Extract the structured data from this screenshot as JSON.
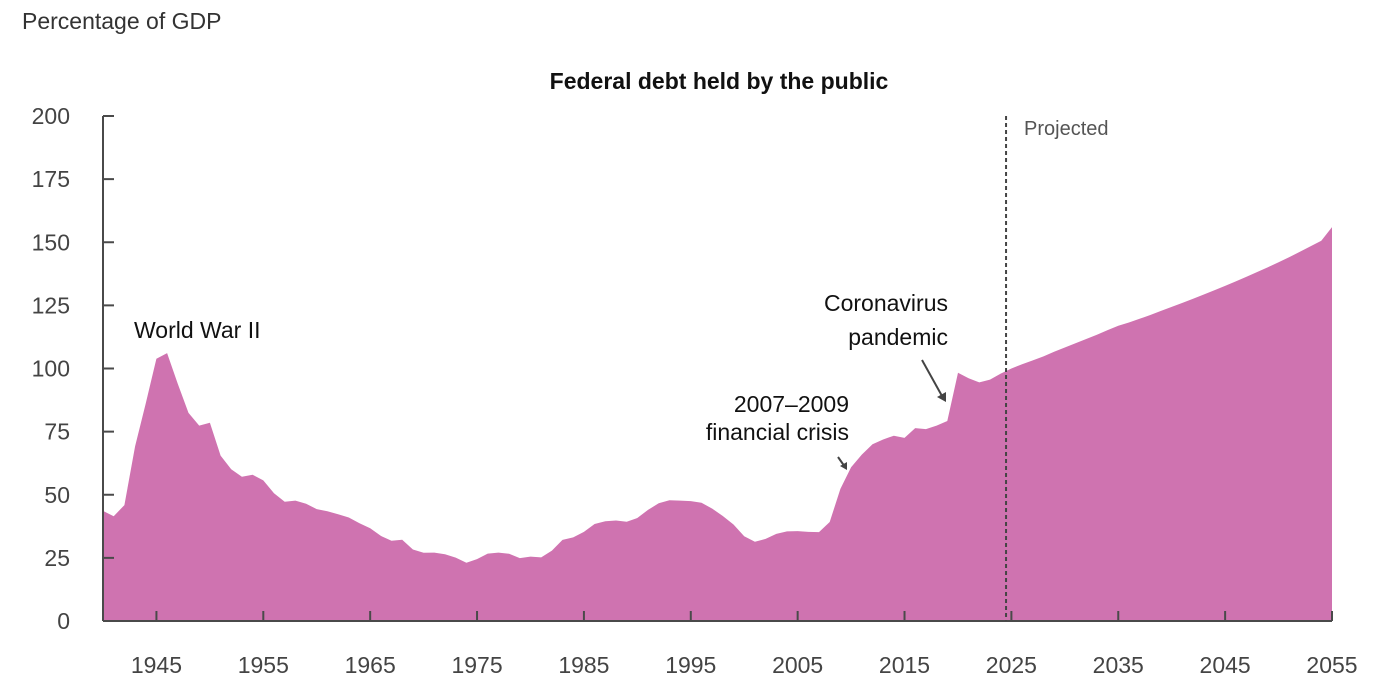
{
  "chart_data": {
    "type": "area",
    "title": "Federal debt held by the public",
    "ylabel": "Percentage of GDP",
    "xlabel": "",
    "xlim": [
      1940,
      2055
    ],
    "ylim": [
      0,
      200
    ],
    "yticks": [
      0,
      25,
      50,
      75,
      100,
      125,
      150,
      175,
      200
    ],
    "xticks": [
      1945,
      1955,
      1965,
      1975,
      1985,
      1995,
      2005,
      2015,
      2025,
      2035,
      2045,
      2055
    ],
    "grid": false,
    "color": "#cf73b0",
    "projection_start": 2024.5,
    "projection_label": "Projected",
    "annotations": [
      {
        "id": "ww2",
        "lines": [
          "World War II"
        ],
        "year": 1946
      },
      {
        "id": "gfc",
        "lines": [
          "2007–2009",
          "financial crisis"
        ],
        "year": 2009
      },
      {
        "id": "covid",
        "lines": [
          "Coronavirus",
          "pandemic"
        ],
        "year": 2019
      }
    ],
    "x": [
      1940,
      1941,
      1942,
      1943,
      1944,
      1945,
      1946,
      1947,
      1948,
      1949,
      1950,
      1951,
      1952,
      1953,
      1954,
      1955,
      1956,
      1957,
      1958,
      1959,
      1960,
      1961,
      1962,
      1963,
      1964,
      1965,
      1966,
      1967,
      1968,
      1969,
      1970,
      1971,
      1972,
      1973,
      1974,
      1975,
      1976,
      1977,
      1978,
      1979,
      1980,
      1981,
      1982,
      1983,
      1984,
      1985,
      1986,
      1987,
      1988,
      1989,
      1990,
      1991,
      1992,
      1993,
      1994,
      1995,
      1996,
      1997,
      1998,
      1999,
      2000,
      2001,
      2002,
      2003,
      2004,
      2005,
      2006,
      2007,
      2008,
      2009,
      2010,
      2011,
      2012,
      2013,
      2014,
      2015,
      2016,
      2017,
      2018,
      2019,
      2020,
      2021,
      2022,
      2023,
      2024,
      2025,
      2026,
      2027,
      2028,
      2029,
      2030,
      2031,
      2032,
      2033,
      2034,
      2035,
      2036,
      2037,
      2038,
      2039,
      2040,
      2041,
      2042,
      2043,
      2044,
      2045,
      2046,
      2047,
      2048,
      2049,
      2050,
      2051,
      2052,
      2053,
      2054,
      2055
    ],
    "values": [
      43.6,
      41.5,
      45.9,
      69.2,
      86.1,
      103.9,
      106.1,
      93.9,
      82.4,
      77.4,
      78.5,
      65.5,
      60.1,
      57.1,
      57.9,
      55.7,
      50.6,
      47.2,
      47.7,
      46.4,
      44.3,
      43.5,
      42.3,
      41.0,
      38.7,
      36.7,
      33.7,
      31.8,
      32.2,
      28.3,
      27.0,
      27.1,
      26.4,
      25.1,
      23.1,
      24.5,
      26.7,
      27.1,
      26.6,
      24.9,
      25.5,
      25.2,
      27.9,
      32.1,
      33.1,
      35.3,
      38.4,
      39.5,
      39.8,
      39.3,
      40.8,
      44.0,
      46.6,
      47.8,
      47.7,
      47.5,
      46.8,
      44.5,
      41.6,
      38.2,
      33.6,
      31.4,
      32.5,
      34.5,
      35.5,
      35.6,
      35.3,
      35.2,
      39.2,
      52.3,
      60.9,
      65.9,
      70.0,
      71.9,
      73.4,
      72.5,
      76.4,
      76.0,
      77.4,
      79.2,
      98.3,
      96.1,
      94.5,
      95.6,
      98.0,
      100.0,
      101.7,
      103.2,
      104.8,
      106.6,
      108.3,
      110.0,
      111.7,
      113.4,
      115.2,
      116.9,
      118.2,
      119.7,
      121.2,
      122.8,
      124.4,
      126.0,
      127.6,
      129.3,
      131.0,
      132.7,
      134.5,
      136.3,
      138.2,
      140.1,
      142.1,
      144.1,
      146.2,
      148.4,
      150.6,
      156.0
    ]
  }
}
